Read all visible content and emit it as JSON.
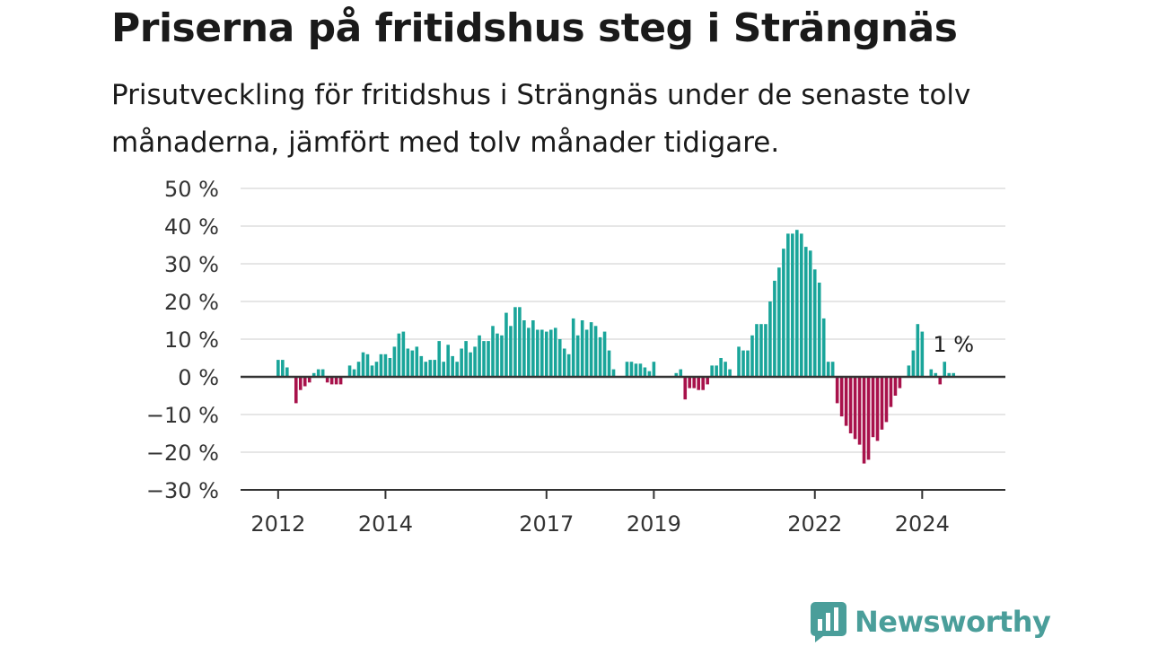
{
  "header": {
    "title": "Priserna på fritidshus steg i Strängnäs",
    "subtitle": "Prisutveckling för fritidshus i Strängnäs under de senaste tolv månaderna, jämfört med tolv månader tidigare."
  },
  "brand": {
    "name": "Newsworthy",
    "color": "#4a9e9a",
    "icon": "newsworthy-chat-bars-icon"
  },
  "colors": {
    "positive": "#1aa59a",
    "negative": "#a8124b",
    "grid": "#dddddd",
    "zero_line": "#333333"
  },
  "chart_data": {
    "type": "bar",
    "title": "Priserna på fritidshus steg i Strängnäs",
    "xlabel": "",
    "ylabel": "",
    "ylim": [
      -30,
      50
    ],
    "y_ticks": [
      "50 %",
      "40 %",
      "30 %",
      "20 %",
      "10 %",
      "0 %",
      "−10 %",
      "−20 %",
      "−30 %"
    ],
    "y_tick_values": [
      50,
      40,
      30,
      20,
      10,
      0,
      -10,
      -20,
      -30
    ],
    "x_ticks": [
      "2012",
      "2014",
      "2017",
      "2019",
      "2022",
      "2024"
    ],
    "x_tick_positions": [
      2012.0,
      2014.0,
      2017.0,
      2019.0,
      2022.0,
      2024.0
    ],
    "x_range": [
      2011.3,
      2025.55
    ],
    "grid": true,
    "legend": "none",
    "last_value_label": "1 %",
    "x_start": 2012.0,
    "series": [
      {
        "values": [
          4.5,
          4.5,
          2.5,
          0,
          -7,
          -3.5,
          -2.5,
          -1.5,
          1,
          2,
          2,
          -1.5,
          -2,
          -2,
          -2,
          0,
          3,
          2,
          4,
          6.5,
          6,
          3,
          4,
          6,
          6,
          5,
          8,
          11.5,
          12,
          7.5,
          7,
          8,
          5.5,
          4,
          4.5,
          4.5,
          9.5,
          4,
          8.5,
          5.5,
          4,
          7.5,
          9.5,
          6.5,
          8,
          11,
          9.5,
          9.5,
          13.5,
          11.5,
          11,
          17,
          13.5,
          18.5,
          18.5,
          15,
          13,
          15,
          12.5,
          12.5,
          12,
          12.5,
          13,
          10,
          7.5,
          6,
          15.5,
          11,
          15,
          12.5,
          14.5,
          13.5,
          10.5,
          12,
          7,
          2,
          0,
          0,
          4,
          4,
          3.5,
          3.5,
          2.5,
          1.5,
          4,
          0,
          0,
          0,
          0,
          1,
          2,
          -6,
          -3,
          -3,
          -3.5,
          -3.5,
          -2,
          3,
          3,
          5,
          4,
          2,
          0,
          8,
          7,
          7,
          11,
          14,
          14,
          14,
          20,
          25.5,
          29,
          34,
          38,
          38,
          39,
          38,
          34.5,
          33.5,
          28.5,
          25,
          15.5,
          4,
          4,
          -7,
          -10.5,
          -13,
          -15,
          -16.5,
          -18,
          -23,
          -22,
          -16,
          -17,
          -14,
          -12,
          -8,
          -5,
          -3,
          0,
          3,
          7,
          14,
          12,
          0,
          2,
          1,
          -2,
          4,
          1,
          1
        ]
      }
    ]
  }
}
